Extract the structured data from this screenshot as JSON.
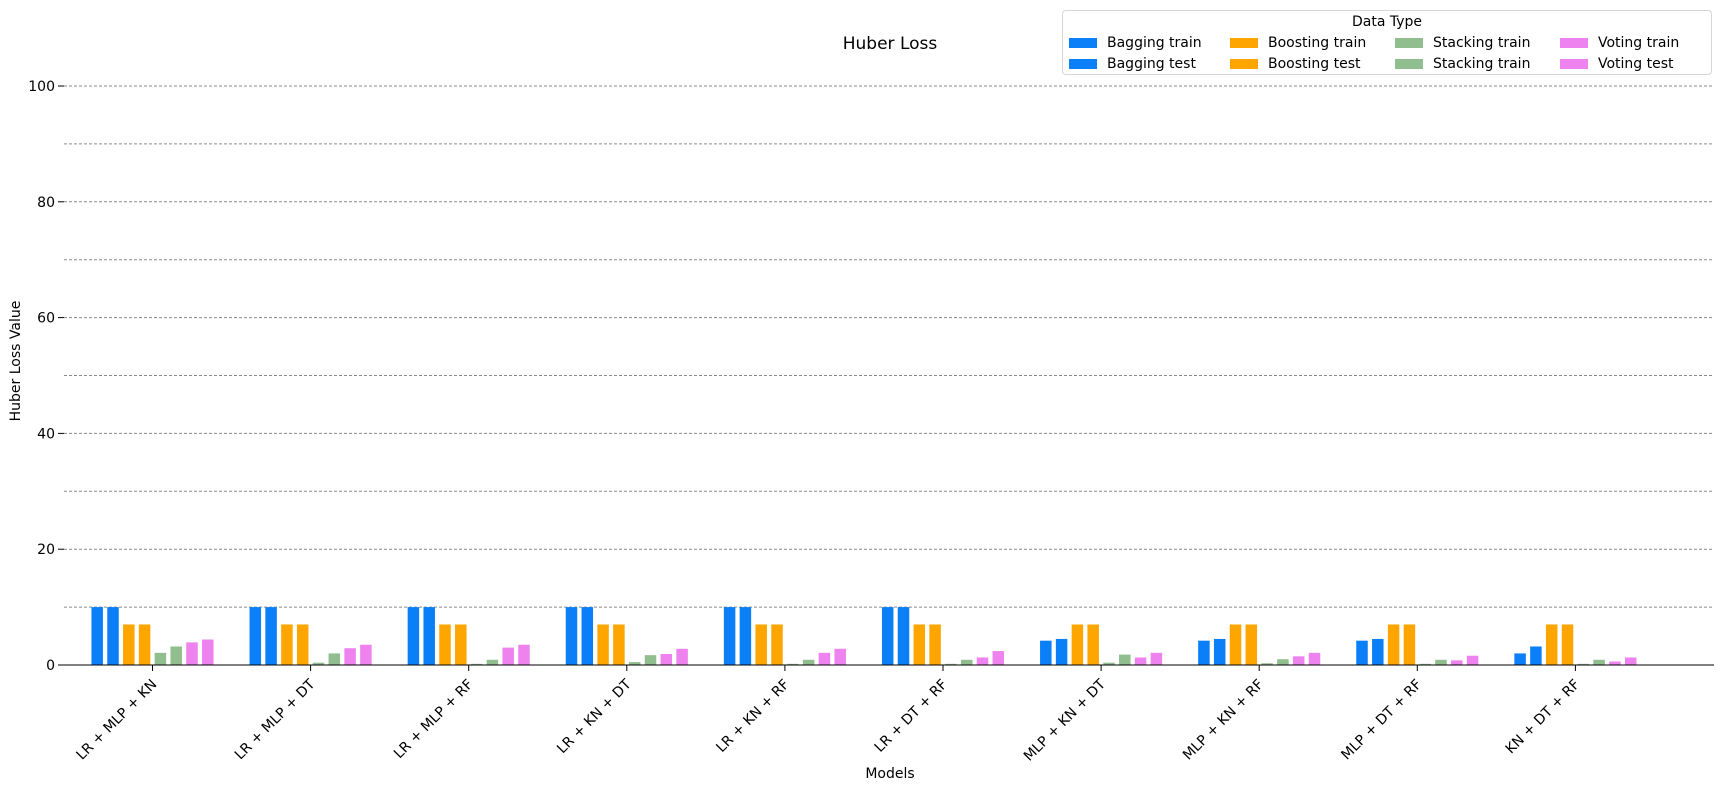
{
  "chart_data": {
    "type": "bar",
    "title": "Huber Loss",
    "xlabel": "Models",
    "ylabel": "Huber Loss Value",
    "ylim": [
      0,
      100
    ],
    "yticks": [
      0,
      20,
      40,
      60,
      80,
      100
    ],
    "grid": true,
    "legend_title": "Data Type",
    "legend_position": "top-right",
    "categories": [
      "LR + MLP + KN",
      "LR + MLP + DT",
      "LR + MLP + RF",
      "LR + KN + DT",
      "LR + KN + RF",
      "LR + DT + RF",
      "MLP + KN + DT",
      "MLP + KN + RF",
      "MLP + DT + RF",
      "KN + DT + RF"
    ],
    "series": [
      {
        "name": "Bagging train",
        "color": "#0a7ff7",
        "values": [
          10,
          10,
          10,
          10,
          10,
          10,
          4.2,
          4.2,
          4.2,
          2.0
        ]
      },
      {
        "name": "Bagging test",
        "color": "#0a7ff7",
        "values": [
          10,
          10,
          10,
          10,
          10,
          10,
          4.5,
          4.5,
          4.5,
          3.2
        ]
      },
      {
        "name": "Boosting train",
        "color": "#ffa500",
        "values": [
          7,
          7,
          7,
          7,
          7,
          7,
          7,
          7,
          7,
          7
        ]
      },
      {
        "name": "Boosting test",
        "color": "#ffa500",
        "values": [
          7,
          7,
          7,
          7,
          7,
          7,
          7,
          7,
          7,
          7
        ]
      },
      {
        "name": "Stacking train",
        "color": "#90be8f",
        "values": [
          2.1,
          0.4,
          0.2,
          0.5,
          0.2,
          0.2,
          0.4,
          0.3,
          0.2,
          0.2
        ]
      },
      {
        "name": "Stacking train",
        "color": "#90be8f",
        "values": [
          3.2,
          2.0,
          0.9,
          1.7,
          0.9,
          0.9,
          1.8,
          1.0,
          0.9,
          0.9
        ]
      },
      {
        "name": "Voting train",
        "color": "#ee82ee",
        "values": [
          3.9,
          2.9,
          3.0,
          1.9,
          2.1,
          1.3,
          1.3,
          1.5,
          0.8,
          0.6
        ]
      },
      {
        "name": "Voting test",
        "color": "#ee82ee",
        "values": [
          4.4,
          3.5,
          3.5,
          2.8,
          2.8,
          2.4,
          2.1,
          2.1,
          1.6,
          1.3
        ]
      }
    ]
  }
}
